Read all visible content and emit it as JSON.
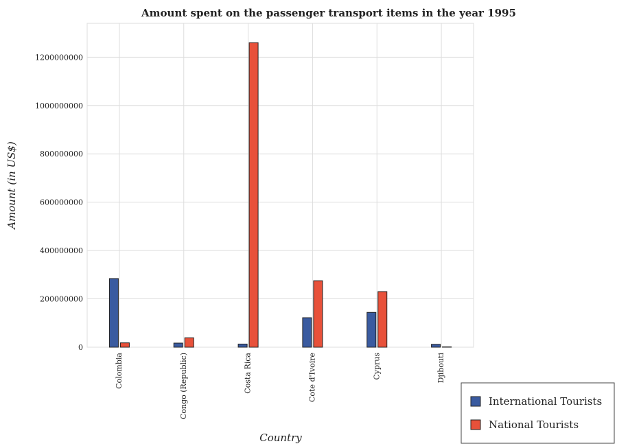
{
  "chart_data": {
    "type": "bar",
    "title": "Amount spent on the passenger transport items in the year 1995",
    "xlabel": "Country",
    "ylabel": "Amount (in US$)",
    "categories": [
      "Colombia",
      "Congo (Republic)",
      "Costa Rica",
      "Cote d'Ivoire",
      "Cyprus",
      "Djibouti"
    ],
    "series": [
      {
        "name": "International Tourists",
        "color": "#3a5ba0",
        "values": [
          284000000,
          17000000,
          13000000,
          122000000,
          144000000,
          12000000
        ]
      },
      {
        "name": "National Tourists",
        "color": "#e8513a",
        "values": [
          18000000,
          39000000,
          1260000000,
          275000000,
          230000000,
          1000000
        ]
      }
    ],
    "ylim": [
      0,
      1340000000
    ],
    "yticks": [
      0,
      200000000,
      400000000,
      600000000,
      800000000,
      1000000000,
      1200000000
    ],
    "ytick_labels": [
      "0",
      "200000000",
      "400000000",
      "600000000",
      "800000000",
      "1000000000",
      "1200000000"
    ],
    "grid": true,
    "legend_position": "bottom-right"
  }
}
